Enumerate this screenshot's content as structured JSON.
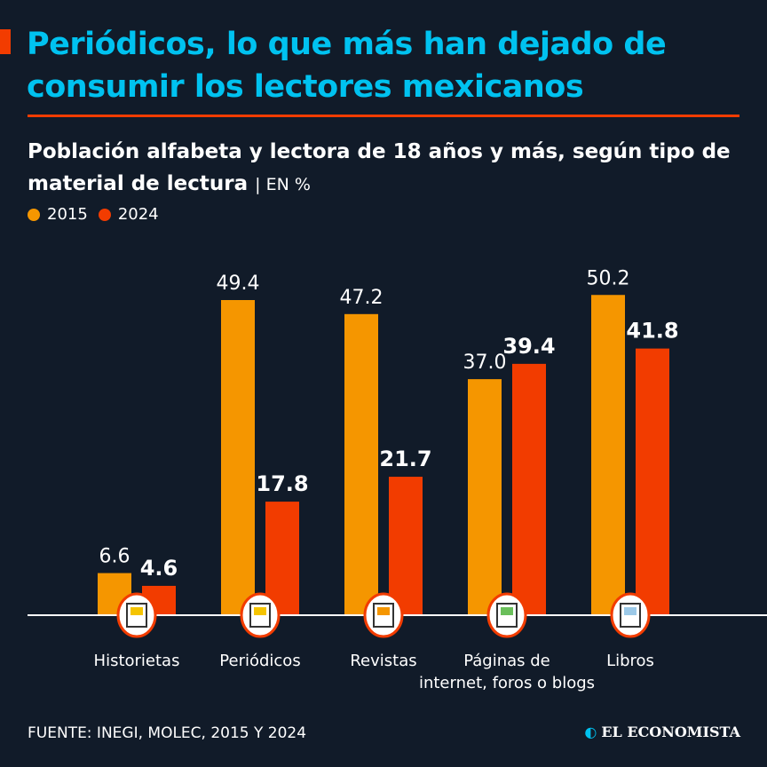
{
  "header": {
    "title": "Periódicos, lo que más han dejado de consumir los lectores mexicanos",
    "subtitle": "Población alfabeta y lectora de 18 años y más, según tipo de material de lectura",
    "unit": "| EN %"
  },
  "colors": {
    "background": "#111b29",
    "title": "#00c2f0",
    "s2015": "#f59600",
    "s2024": "#f23c00"
  },
  "chart_data": {
    "type": "bar",
    "categories": [
      "Historietas",
      "Periódicos",
      "Revistas",
      "Páginas de internet, foros o blogs",
      "Libros"
    ],
    "category_lines": [
      [
        "Historietas"
      ],
      [
        "Periódicos"
      ],
      [
        "Revistas"
      ],
      [
        "Páginas de",
        "internet, foros o blogs"
      ],
      [
        "Libros"
      ]
    ],
    "icons": [
      "comic-icon",
      "newspaper-icon",
      "magazine-icon",
      "webpage-icon",
      "book-icon"
    ],
    "series": [
      {
        "name": "2015",
        "values": [
          6.6,
          49.4,
          47.2,
          37.0,
          50.2
        ],
        "labels": [
          "6.6",
          "49.4",
          "47.2",
          "37.0",
          "50.2"
        ]
      },
      {
        "name": "2024",
        "values": [
          4.6,
          17.8,
          21.7,
          39.4,
          41.8
        ],
        "labels": [
          "4.6",
          "17.8",
          "21.7",
          "39.4",
          "41.8"
        ]
      }
    ],
    "ylim": [
      0,
      50.2
    ]
  },
  "footer": {
    "source": "FUENTE: INEGI, MOLEC, 2015 Y 2024",
    "logo": "EL ECONOMISTA"
  }
}
